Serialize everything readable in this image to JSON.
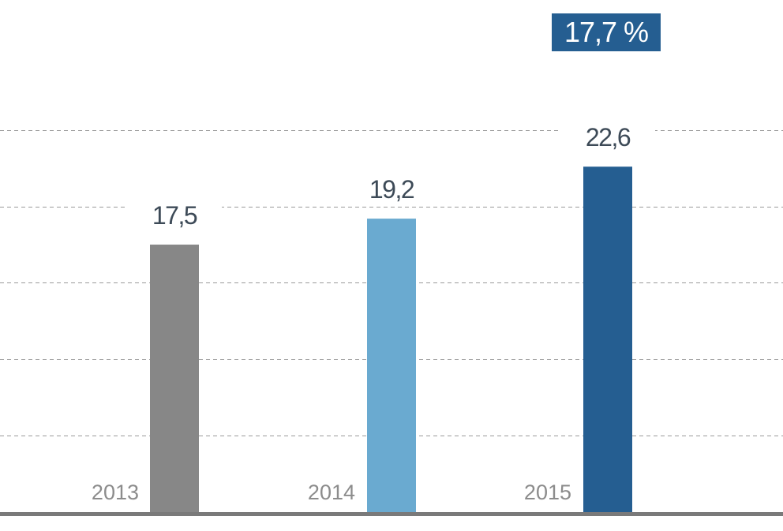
{
  "badge": {
    "text": "17,7 %"
  },
  "chart_data": {
    "type": "bar",
    "title": "",
    "xlabel": "",
    "ylabel": "",
    "categories": [
      "2013",
      "2014",
      "2015"
    ],
    "values": [
      17.5,
      19.2,
      22.6
    ],
    "value_labels": [
      "17,5",
      "19,2",
      "22,6"
    ],
    "colors": [
      "#878787",
      "#6aaad0",
      "#255e91"
    ],
    "ylim": [
      0,
      25
    ],
    "gridlines": [
      5,
      10,
      15,
      20,
      25
    ],
    "grid": true
  }
}
